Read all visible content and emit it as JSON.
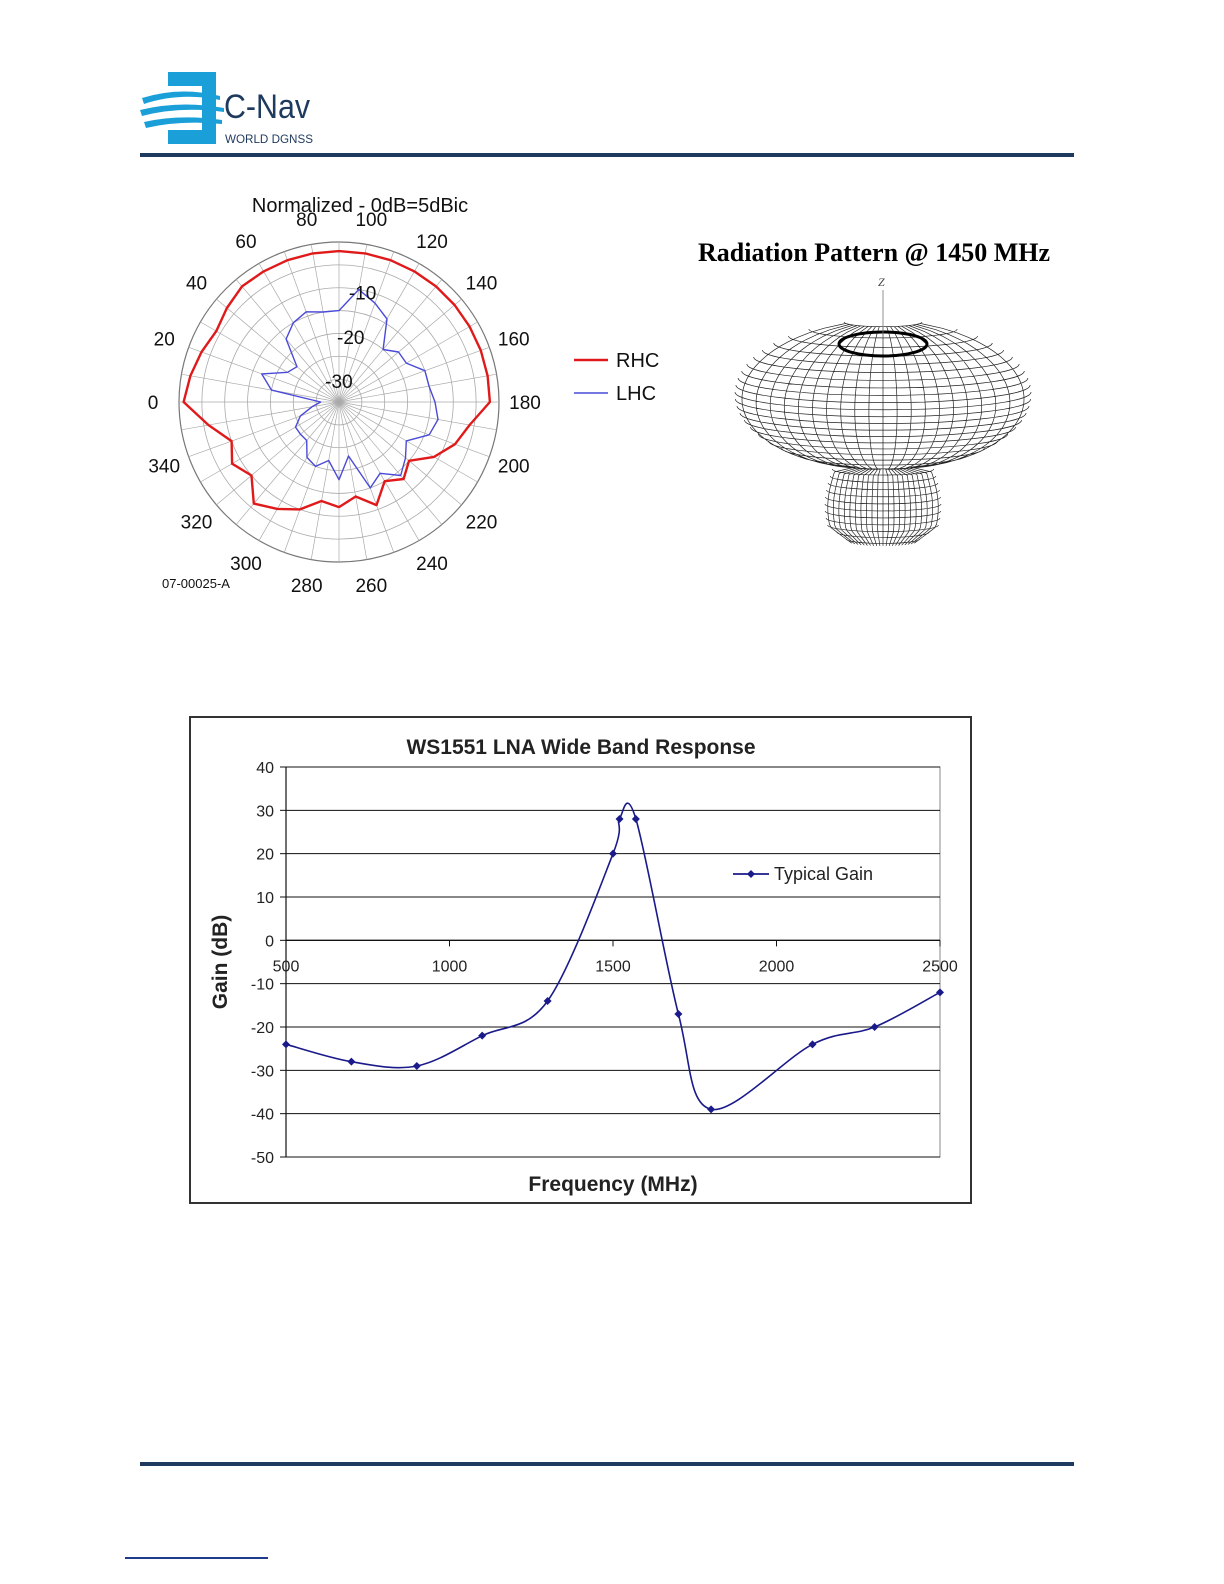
{
  "header": {
    "logo_name": "C-Nav",
    "logo_tagline": "WORLD DGNSS"
  },
  "colors": {
    "rule": "#1e3a5f",
    "rhc": "#e01a1a",
    "lhc": "#4a4ad8",
    "gain_line": "#1a1a8a",
    "logo_blue": "#1a9fd8"
  },
  "chart_data": [
    {
      "type": "polar",
      "title": "Normalized - 0dB=5dBic",
      "angle_ticks": [
        0,
        20,
        40,
        60,
        80,
        100,
        120,
        140,
        160,
        180,
        200,
        220,
        240,
        260,
        280,
        300,
        320,
        340
      ],
      "radial_ticks": [
        -10,
        -20,
        -30
      ],
      "rlim": [
        -35,
        0
      ],
      "figure_label": "07-00025-A",
      "legend_placement": "right",
      "series": [
        {
          "name": "RHC",
          "angles": [
            0,
            10,
            20,
            30,
            40,
            50,
            60,
            70,
            80,
            90,
            100,
            110,
            120,
            130,
            140,
            150,
            160,
            170,
            180,
            190,
            200,
            210,
            220,
            230,
            240,
            250,
            260,
            270,
            280,
            290,
            300,
            310,
            320,
            330,
            340,
            350
          ],
          "values": [
            -1,
            -2,
            -3,
            -4,
            -3,
            -2,
            -2,
            -2,
            -2,
            -2,
            -2,
            -2,
            -2,
            -2,
            -2,
            -2,
            -2,
            -2,
            -2,
            -6,
            -8,
            -11,
            -15,
            -13,
            -15,
            -11,
            -14,
            -12,
            -13,
            -10,
            -8,
            -6,
            -10,
            -8,
            -10,
            -6
          ]
        },
        {
          "name": "LHC",
          "angles": [
            0,
            10,
            20,
            30,
            40,
            50,
            60,
            70,
            80,
            90,
            100,
            110,
            120,
            130,
            140,
            150,
            160,
            170,
            180,
            190,
            200,
            210,
            220,
            230,
            240,
            250,
            260,
            270,
            280,
            290,
            300,
            310,
            320,
            330,
            340,
            350
          ],
          "values": [
            -31,
            -20,
            -17,
            -22,
            -23,
            -17,
            -15,
            -14,
            -15,
            -15,
            -10,
            -12,
            -14,
            -20,
            -18,
            -18,
            -15,
            -15,
            -14,
            -13,
            -14,
            -18,
            -16,
            -14,
            -17,
            -15,
            -23,
            -18,
            -22,
            -20,
            -21,
            -24,
            -24,
            -24,
            -26,
            -29
          ]
        }
      ]
    },
    {
      "type": "line",
      "title": "WS1551 LNA Wide Band Response",
      "xlabel": "Frequency (MHz)",
      "ylabel": "Gain (dB)",
      "xlim": [
        500,
        2500
      ],
      "ylim": [
        -50,
        40
      ],
      "xticks": [
        500,
        1000,
        1500,
        2000,
        2500
      ],
      "yticks": [
        40,
        30,
        20,
        10,
        0,
        -10,
        -20,
        -30,
        -40,
        -50
      ],
      "grid": "horizontal",
      "legend_placement": "right",
      "series": [
        {
          "name": "Typical Gain",
          "x": [
            500,
            700,
            900,
            1100,
            1300,
            1500,
            1520,
            1570,
            1700,
            1800,
            2110,
            2300,
            2500
          ],
          "y": [
            -24,
            -28,
            -29,
            -22,
            -14,
            20,
            28,
            28,
            -17,
            -39,
            -24,
            -20,
            -12
          ]
        }
      ]
    },
    {
      "type": "3d-mesh",
      "title": "Radiation Pattern @ 1450 MHz",
      "axis_label": "Z"
    }
  ]
}
